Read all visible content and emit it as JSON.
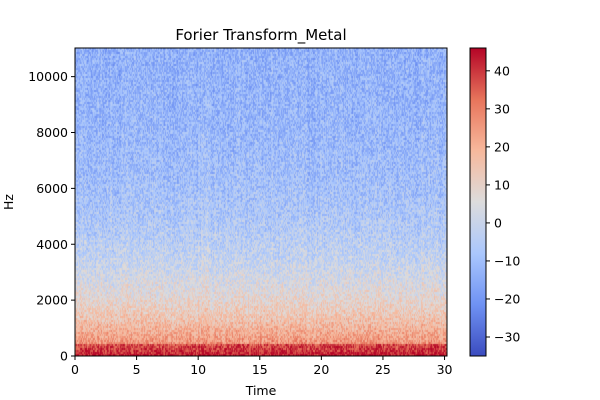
{
  "chart_data": {
    "type": "heatmap",
    "title": "Forier Transform_Metal",
    "xlabel": "Time",
    "ylabel": "Hz",
    "xlim": [
      0,
      30.2
    ],
    "ylim": [
      0,
      11025
    ],
    "xticks": [
      "0",
      "5",
      "10",
      "15",
      "20",
      "25",
      "30"
    ],
    "yticks": [
      "0",
      "2000",
      "4000",
      "6000",
      "8000",
      "10000"
    ],
    "colorbar": {
      "colormap": "coolwarm",
      "range": [
        -35,
        46
      ],
      "ticks": [
        "−30",
        "−20",
        "−10",
        "0",
        "10",
        "20",
        "30",
        "40"
      ]
    },
    "colormap_stops": [
      "#3b4cc0",
      "#6f92f3",
      "#aac7fd",
      "#dddcdc",
      "#f7b89c",
      "#e7745b",
      "#b40426"
    ]
  }
}
